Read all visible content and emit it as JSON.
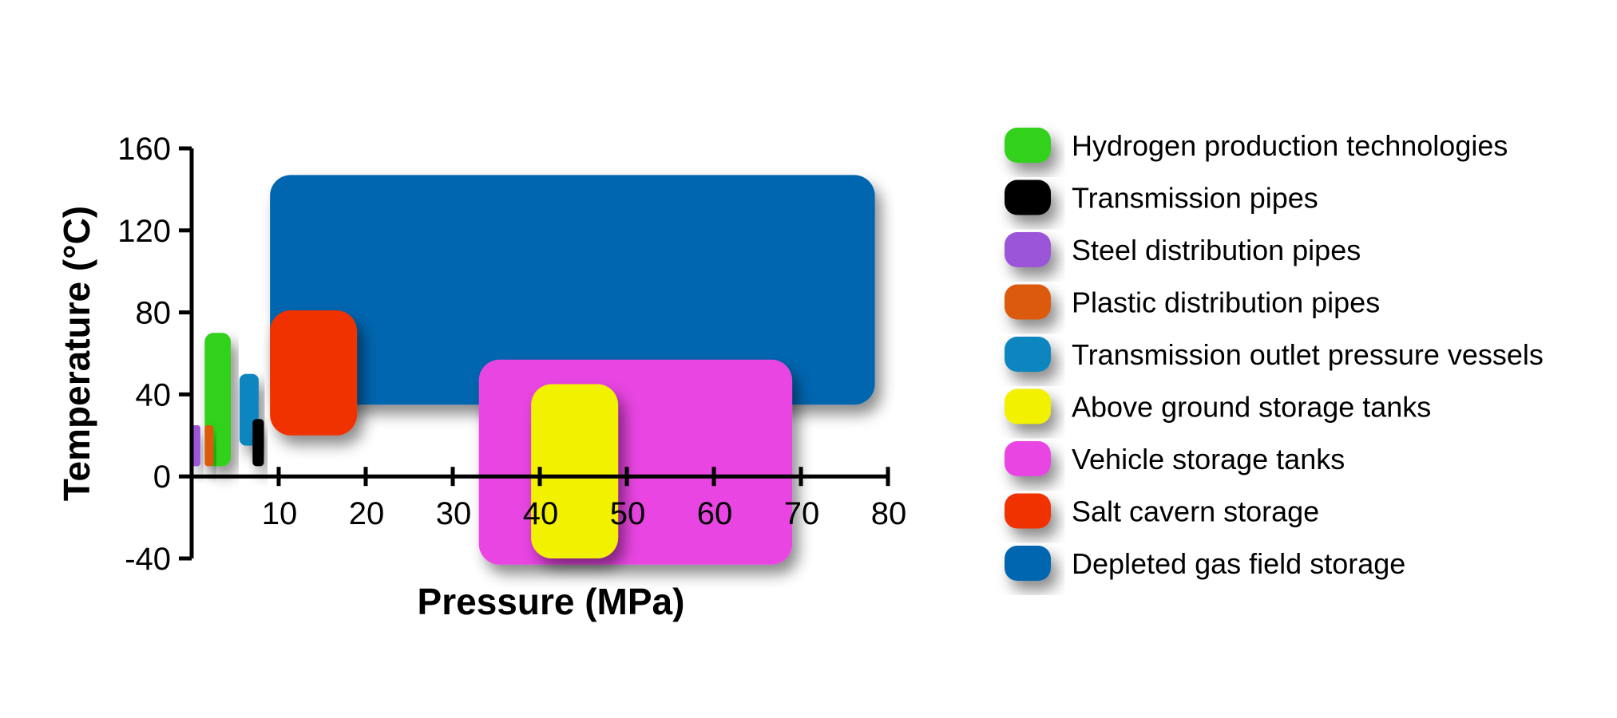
{
  "chart_data": {
    "type": "range-box",
    "xlabel": "Pressure (MPa)",
    "ylabel": "Temperature (°C)",
    "xlim": [
      0,
      80
    ],
    "ylim": [
      -40,
      160
    ],
    "xticks": [
      "10",
      "20",
      "30",
      "40",
      "50",
      "60",
      "70",
      "80"
    ],
    "yticks": [
      "160",
      "120",
      "80",
      "40",
      "0",
      "-40"
    ],
    "legend_position": "right",
    "series": [
      {
        "name": "Hydrogen production technologies",
        "color": "#33d11a",
        "x": [
          1.5,
          4.5
        ],
        "y": [
          5,
          70
        ]
      },
      {
        "name": "Transmission pipes",
        "color": "#000000",
        "x": [
          7,
          8.3
        ],
        "y": [
          5,
          28
        ]
      },
      {
        "name": "Steel distribution pipes",
        "color": "#9b55d8",
        "x": [
          0,
          1
        ],
        "y": [
          5,
          25
        ]
      },
      {
        "name": "Plastic distribution pipes",
        "color": "#dc5a08",
        "x": [
          1.5,
          2.5
        ],
        "y": [
          5,
          25
        ]
      },
      {
        "name": "Transmission outlet pressure vessels",
        "color": "#0a86c0",
        "x": [
          5.5,
          7.7
        ],
        "y": [
          15,
          50
        ]
      },
      {
        "name": "Above ground storage tanks",
        "color": "#f2f200",
        "x": [
          39,
          49
        ],
        "y": [
          -40,
          45
        ]
      },
      {
        "name": "Vehicle storage tanks",
        "color": "#e845e2",
        "x": [
          33,
          69
        ],
        "y": [
          -43,
          57
        ]
      },
      {
        "name": "Salt cavern storage",
        "color": "#ef3305",
        "x": [
          9,
          19
        ],
        "y": [
          20,
          81
        ]
      },
      {
        "name": "Depleted gas field storage",
        "color": "#0066b0",
        "x": [
          9,
          78.5
        ],
        "y": [
          35,
          147
        ]
      }
    ]
  }
}
